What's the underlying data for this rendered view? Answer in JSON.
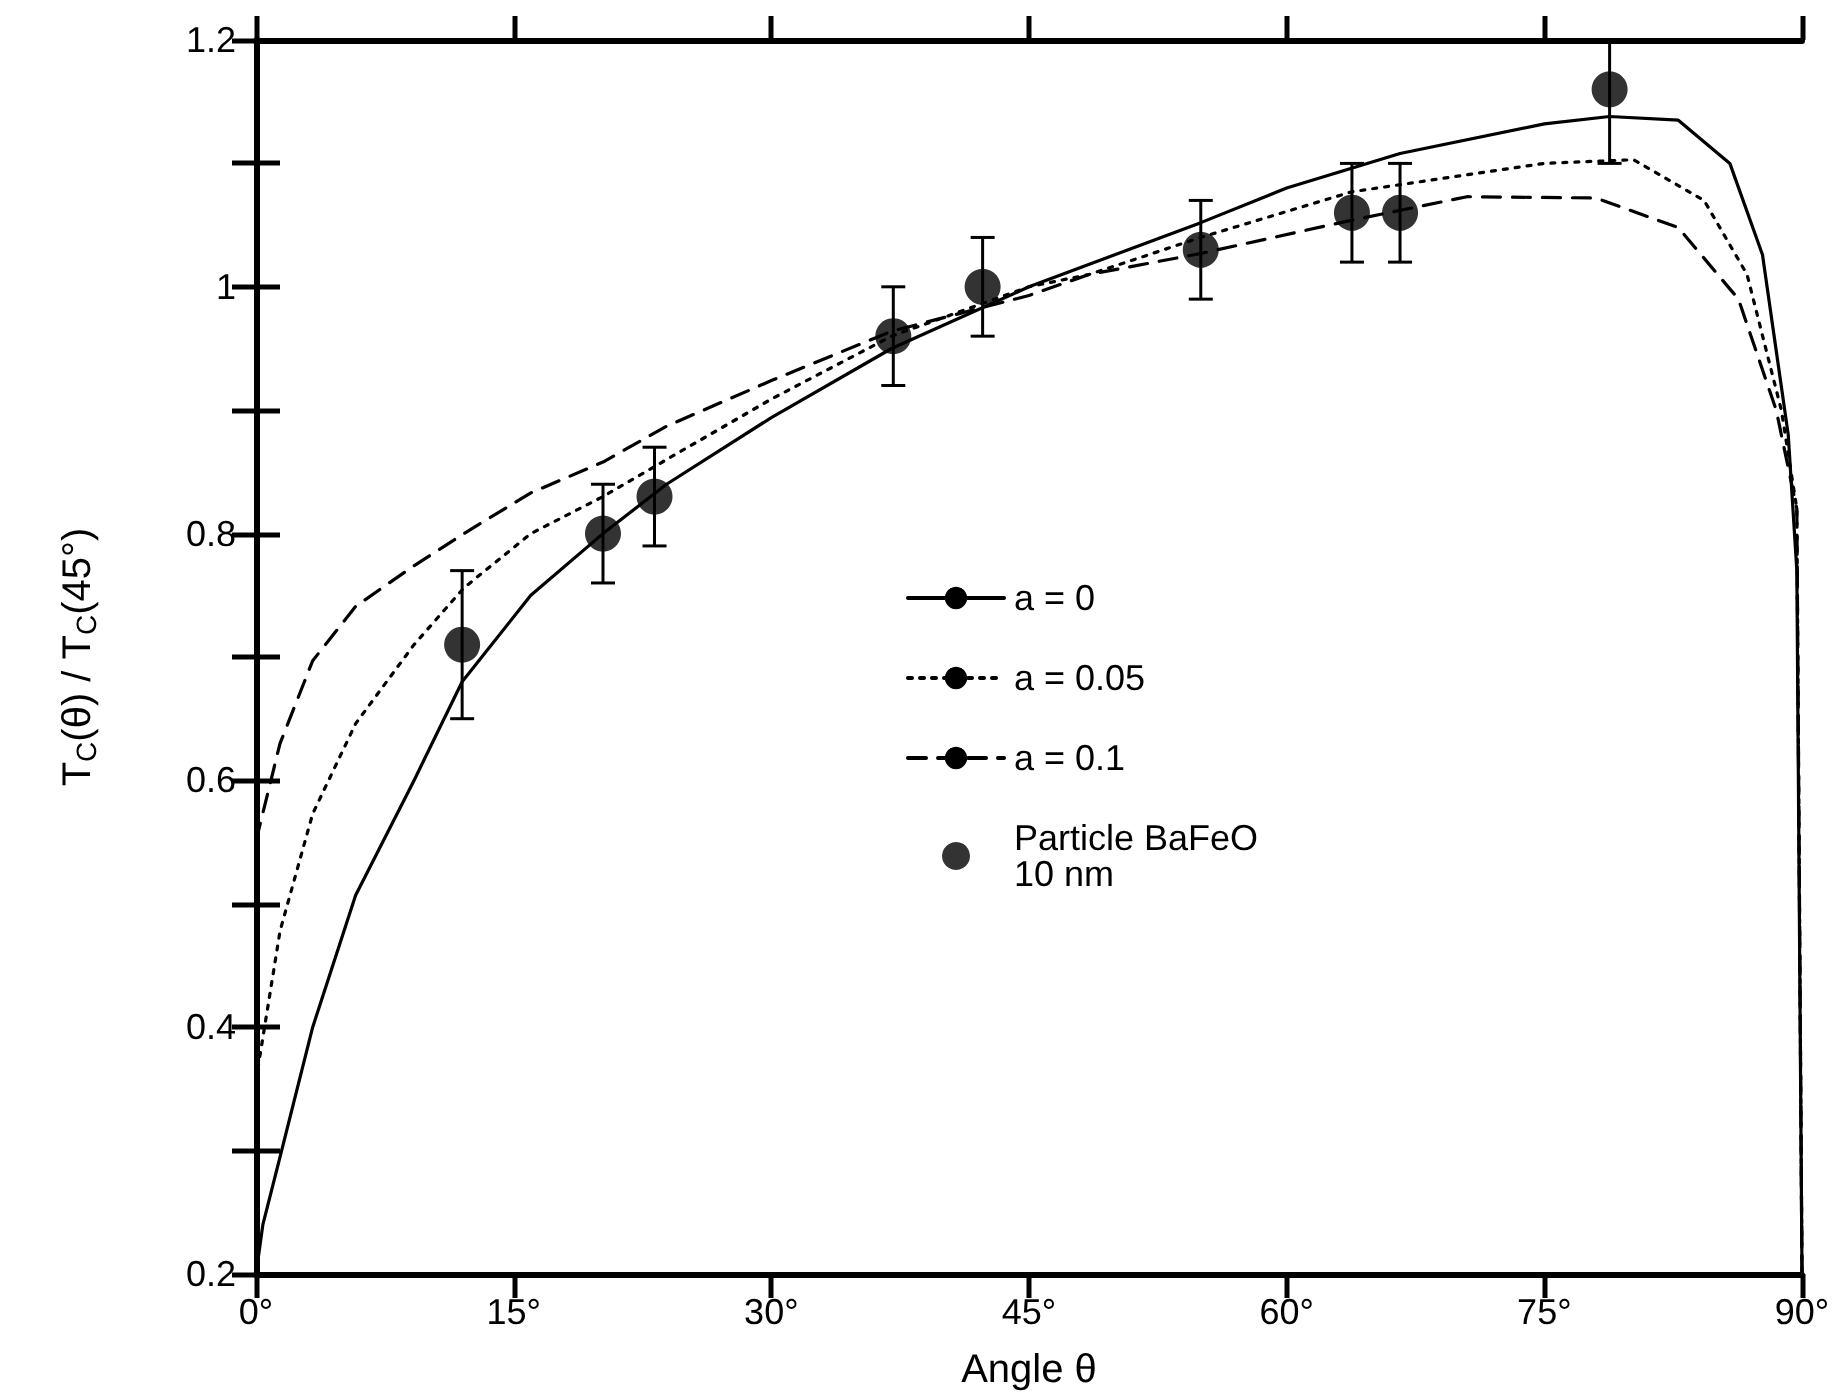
{
  "chart_data": {
    "type": "line",
    "xlabel": "Angle θ",
    "ylabel": "T$_{C}$(θ) / T$_{C}$(45°)",
    "xlim": [
      0,
      90
    ],
    "ylim": [
      0.2,
      1.2
    ],
    "xticks": [
      {
        "value": 0,
        "label": "0°"
      },
      {
        "value": 15,
        "label": "15°"
      },
      {
        "value": 30,
        "label": "30°"
      },
      {
        "value": 45,
        "label": "45°"
      },
      {
        "value": 60,
        "label": "60°"
      },
      {
        "value": 75,
        "label": "75°"
      },
      {
        "value": 90,
        "label": "90°"
      }
    ],
    "yticks": [
      0.2,
      {
        "value": 0.3,
        "label": null
      },
      0.4,
      {
        "value": 0.5,
        "label": null
      },
      0.6,
      {
        "value": 0.7,
        "label": null
      },
      0.8,
      {
        "value": 0.9,
        "label": null
      },
      1,
      {
        "value": 1.1,
        "label": null
      },
      1.2
    ],
    "grid": false,
    "legend": "center right",
    "series": [
      {
        "name": "a = 0",
        "color": "#000000",
        "line_style": "solid",
        "marker": "none",
        "x": [
          0,
          0.4,
          1.4,
          3.3,
          5.8,
          9.2,
          12,
          16,
          20.2,
          23.9,
          30,
          37,
          45,
          55,
          60,
          66.6,
          75,
          78.8,
          82.8,
          85.8,
          87.7,
          89.2,
          89.7,
          90
        ],
        "values": [
          0.2,
          0.24,
          0.295,
          0.4,
          0.507,
          0.6,
          0.68,
          0.75,
          0.8,
          0.84,
          0.894,
          0.95,
          1.0,
          1.052,
          1.08,
          1.108,
          1.132,
          1.138,
          1.135,
          1.1,
          1.026,
          0.88,
          0.77,
          0.2
        ]
      },
      {
        "name": "a = 0.05",
        "color": "#000000",
        "line_style": "dotted",
        "marker": "none",
        "x": [
          0,
          1.4,
          3.3,
          5.8,
          9.2,
          12.1,
          16,
          20.2,
          23.9,
          30,
          37,
          45,
          48.5,
          55,
          63.8,
          75,
          80.2,
          84.3,
          86.8,
          88.8,
          89.7,
          90
        ],
        "values": [
          0.357,
          0.478,
          0.573,
          0.646,
          0.71,
          0.756,
          0.8,
          0.83,
          0.86,
          0.909,
          0.96,
          1.0,
          1.01,
          1.04,
          1.077,
          1.1,
          1.103,
          1.07,
          1.01,
          0.9,
          0.82,
          0.2
        ]
      },
      {
        "name": "a = 0.1",
        "color": "#000000",
        "line_style": "dashed",
        "marker": "none",
        "x": [
          0,
          1.4,
          3.3,
          5.8,
          9.2,
          12.1,
          16,
          20.2,
          23.9,
          30,
          37,
          45,
          48.5,
          55,
          63.8,
          70.5,
          78,
          82.8,
          86.3,
          88.5,
          89.7,
          90
        ],
        "values": [
          0.551,
          0.63,
          0.697,
          0.741,
          0.774,
          0.8,
          0.833,
          0.858,
          0.887,
          0.924,
          0.964,
          0.993,
          1.01,
          1.027,
          1.054,
          1.073,
          1.072,
          1.048,
          0.99,
          0.9,
          0.82,
          0.2
        ]
      },
      {
        "name": "Particle BaFeO\n10 nm",
        "type": "scatter",
        "color": "#000000",
        "marker": "circle",
        "x": [
          12.0,
          20.2,
          23.2,
          37.1,
          42.3,
          55.0,
          63.8,
          66.6,
          78.8
        ],
        "values": [
          0.71,
          0.8,
          0.83,
          0.96,
          1.0,
          1.03,
          1.06,
          1.06,
          1.16
        ],
        "errors": [
          0.06,
          0.04,
          0.04,
          0.04,
          0.04,
          0.04,
          0.04,
          0.04,
          [
            1.1,
            1.2
          ]
        ]
      }
    ]
  }
}
